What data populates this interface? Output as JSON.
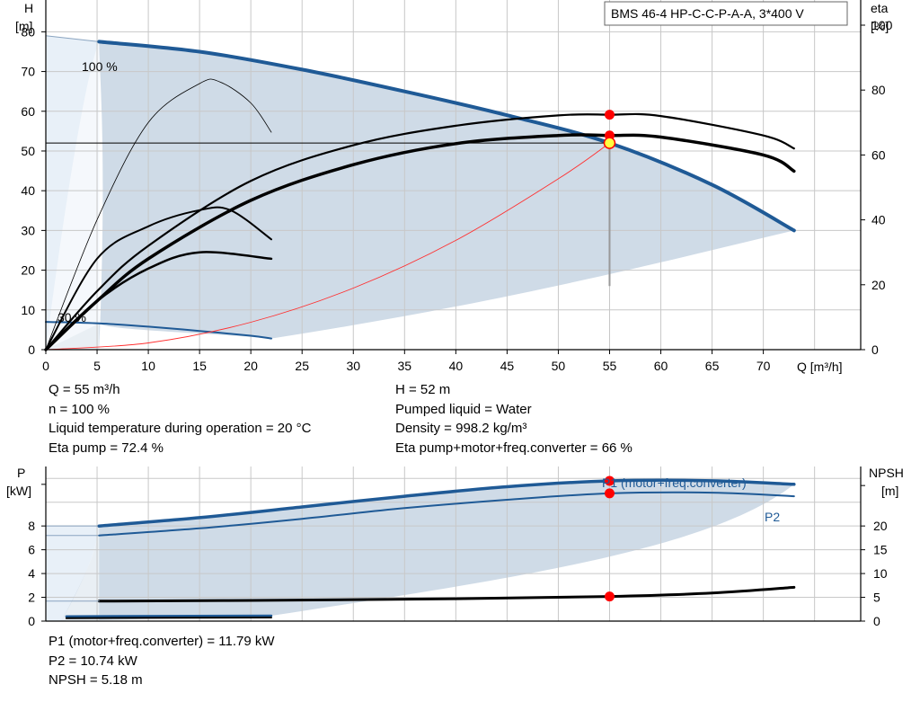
{
  "chart_data": [
    {
      "type": "line",
      "title": "BMS 46-4 HP-C-C-P-A-A, 3*400 V",
      "xlabel": "Q [m³/h]",
      "ylabel_left": [
        "H",
        "[m]"
      ],
      "ylabel_right": [
        "eta",
        "[%]"
      ],
      "xlim": [
        0,
        79.5
      ],
      "ylim_left": [
        0,
        88
      ],
      "ylim_right": [
        0,
        100
      ],
      "x_ticks": [
        0,
        5,
        10,
        15,
        20,
        25,
        30,
        35,
        40,
        45,
        50,
        55,
        60,
        65,
        70
      ],
      "y_ticks_left": [
        0,
        10,
        20,
        30,
        40,
        50,
        60,
        70,
        80
      ],
      "y_ticks_right": [
        0,
        20,
        40,
        60,
        80,
        100
      ],
      "grid": true,
      "annotations": [
        "100 %",
        "30 %"
      ],
      "duty_point": {
        "q": 55,
        "h": 52
      },
      "series": [
        {
          "role": "head-100",
          "q": [
            5.2,
            15,
            25,
            35,
            45,
            55,
            65,
            73
          ],
          "h": [
            77.5,
            75,
            70.5,
            65,
            59,
            52,
            41.5,
            30
          ]
        },
        {
          "role": "head-30",
          "q": [
            0,
            5.2,
            10,
            15,
            20,
            22
          ],
          "h": [
            7,
            6.6,
            5.8,
            4.7,
            3.5,
            2.8
          ]
        },
        {
          "role": "eta-a",
          "q": [
            0,
            5,
            10,
            20,
            30,
            40,
            50,
            55,
            60,
            70,
            73
          ],
          "eta": [
            0,
            18,
            32,
            52,
            63,
            69,
            72.2,
            72.4,
            72,
            66,
            62
          ]
        },
        {
          "role": "eta-b",
          "q": [
            0,
            5,
            10,
            20,
            30,
            40,
            50,
            55,
            60,
            70,
            73
          ],
          "eta": [
            0,
            15,
            28,
            46,
            57,
            63.5,
            66,
            66,
            65.5,
            60,
            55
          ]
        },
        {
          "role": "eta-30-a",
          "q": [
            0,
            5,
            10,
            15,
            18,
            22
          ],
          "eta": [
            0,
            28,
            38,
            43,
            43,
            34
          ]
        },
        {
          "role": "eta-30-b",
          "q": [
            0,
            5,
            10,
            15,
            22
          ],
          "eta": [
            0,
            15,
            25,
            30,
            28
          ]
        },
        {
          "role": "eta-30-thin",
          "q": [
            0,
            5,
            10,
            15,
            17,
            20,
            22
          ],
          "eta": [
            0,
            40,
            70,
            82,
            82.5,
            76,
            67
          ]
        },
        {
          "role": "system-curve",
          "q": [
            0,
            10,
            20,
            30,
            40,
            50,
            55
          ],
          "h": [
            0,
            1.7,
            6.9,
            15.5,
            27.5,
            43,
            52
          ]
        }
      ]
    },
    {
      "type": "line",
      "xlabel": "",
      "ylabel_left": [
        "P",
        "[kW]"
      ],
      "ylabel_right": [
        "NPSH",
        "[m]"
      ],
      "xlim": [
        0,
        79.5
      ],
      "ylim_left": [
        0,
        13
      ],
      "ylim_right": [
        0,
        32.5
      ],
      "y_ticks_left": [
        0,
        2,
        4,
        6,
        8
      ],
      "y_ticks_right": [
        0,
        5,
        10,
        15,
        20
      ],
      "grid": true,
      "series": [
        {
          "name": "P1 (motor+freq.converter)",
          "q": [
            5.2,
            15,
            25,
            35,
            45,
            55,
            65,
            73
          ],
          "p": [
            8,
            8.7,
            9.6,
            10.5,
            11.3,
            11.79,
            11.8,
            11.5
          ]
        },
        {
          "name": "P2",
          "q": [
            5.2,
            15,
            25,
            35,
            45,
            55,
            65,
            73
          ],
          "p": [
            7.2,
            7.8,
            8.6,
            9.5,
            10.2,
            10.74,
            10.8,
            10.5
          ]
        },
        {
          "role": "npsh",
          "q": [
            5.2,
            20,
            40,
            55,
            65,
            73
          ],
          "npsh": [
            4.2,
            4.35,
            4.7,
            5.18,
            5.9,
            7.1
          ]
        },
        {
          "role": "p1-30",
          "q": [
            2,
            22
          ],
          "p": [
            0.4,
            0.45
          ]
        },
        {
          "role": "p2-30",
          "q": [
            2,
            22
          ],
          "p": [
            0.25,
            0.3
          ]
        }
      ]
    }
  ],
  "info_top_left": [
    "Q = 55 m³/h",
    "n = 100 %",
    "Liquid temperature during operation = 20 °C",
    "Eta pump = 72.4 %"
  ],
  "info_top_right": [
    "H = 52 m",
    "Pumped liquid = Water",
    "Density = 998.2 kg/m³",
    "Eta pump+motor+freq.converter = 66 %"
  ],
  "info_bottom": [
    "P1 (motor+freq.converter) = 11.79 kW",
    "P2 = 10.74 kW",
    "NPSH = 5.18 m"
  ],
  "colors": {
    "envelope_fill": "#cfdbe7",
    "envelope_light": "#e8f0f8",
    "pump_blue": "#1f5a96",
    "grid": "#c8c8c8",
    "system_curve": "#ff3030",
    "marker": "#ff0000",
    "duty_marker_fill": "#ffff40"
  }
}
